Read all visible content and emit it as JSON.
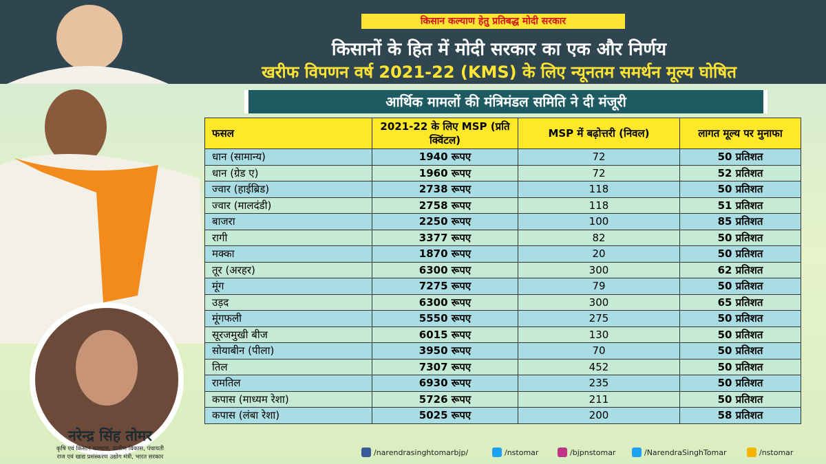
{
  "header": {
    "tagline": "किसान कल्याण हेतु प्रतिबद्ध मोदी सरकार",
    "title": "किसानों के हित में मोदी सरकार का एक और निर्णय",
    "subtitle": "खरीफ विपणन वर्ष 2021-22 (KMS) के लिए न्यूनतम समर्थन मूल्य घोषित"
  },
  "banner": "आर्थिक मामलों की मंत्रिमंडल समिति ने दी मंजूरी",
  "table": {
    "columns": [
      "फसल",
      "2021-22 के लिए MSP (प्रति क्विंटल)",
      "MSP में बढ़ोत्तरी (निवल)",
      "लागत मूल्य पर मुनाफा"
    ],
    "rows": [
      [
        "धान (सामान्य)",
        "1940 रूपए",
        "72",
        "50 प्रतिशत"
      ],
      [
        "धान (ग्रेड ए)",
        "1960 रूपए",
        "72",
        "52 प्रतिशत"
      ],
      [
        "ज्वार (हाईब्रिड)",
        "2738 रूपए",
        "118",
        "50 प्रतिशत"
      ],
      [
        "ज्वार (मालदंडी)",
        "2758 रूपए",
        "118",
        "51 प्रतिशत"
      ],
      [
        "बाजरा",
        "2250 रूपए",
        "100",
        "85 प्रतिशत"
      ],
      [
        "रागी",
        "3377 रूपए",
        "82",
        "50 प्रतिशत"
      ],
      [
        "मक्का",
        "1870 रूपए",
        "20",
        "50 प्रतिशत"
      ],
      [
        "तूर (अरहर)",
        "6300 रूपए",
        "300",
        "62 प्रतिशत"
      ],
      [
        "मूंग",
        "7275 रूपए",
        "79",
        "50 प्रतिशत"
      ],
      [
        "उड़द",
        "6300 रूपए",
        "300",
        "65 प्रतिशत"
      ],
      [
        "मूंगफली",
        "5550 रूपए",
        "275",
        "50 प्रतिशत"
      ],
      [
        "सूरजमुखी बीज",
        "6015 रूपए",
        "130",
        "50 प्रतिशत"
      ],
      [
        "सोयाबीन (पीला)",
        "3950 रूपए",
        "70",
        "50 प्रतिशत"
      ],
      [
        "तिल",
        "7307 रूपए",
        "452",
        "50 प्रतिशत"
      ],
      [
        "रामतिल",
        "6930 रूपए",
        "235",
        "50 प्रतिशत"
      ],
      [
        "कपास (माध्यम रेशा)",
        "5726 रूपए",
        "211",
        "50 प्रतिशत"
      ],
      [
        "कपास (लंबा रेशा)",
        "5025 रूपए",
        "200",
        "58 प्रतिशत"
      ]
    ]
  },
  "minister": {
    "name": "नरेन्द्र सिंह तोमर",
    "designation": [
      "कृषि एवं किसान कल्याण, ग्रामीण विकास, पंचायती",
      "राज एवं खाद्य प्रसंस्करण उद्योग मंत्री, भारत सरकार"
    ]
  },
  "social": [
    "/narendrasinghtomarbjp/",
    "/nstomar",
    "/bjpnstomar",
    "/NarendraSinghTomar",
    "/nstomar"
  ]
}
